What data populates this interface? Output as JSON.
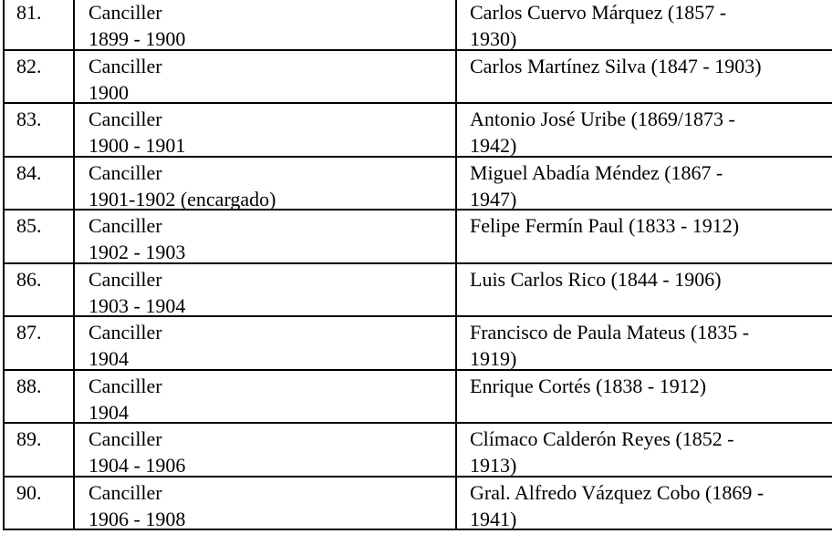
{
  "rows": [
    {
      "num": "81.",
      "title": "Canciller",
      "period": "1899 - 1900",
      "name1": "Carlos Cuervo Márquez (1857 -",
      "name2": "1930)"
    },
    {
      "num": "82.",
      "title": "Canciller",
      "period": "1900",
      "name1": "Carlos Martínez Silva (1847 - 1903)",
      "name2": ""
    },
    {
      "num": "83.",
      "title": "Canciller",
      "period": "1900 - 1901",
      "name1": "Antonio José Uribe (1869/1873 -",
      "name2": "1942)"
    },
    {
      "num": "84.",
      "title": "Canciller",
      "period": "1901-1902 (encargado)",
      "name1": "Miguel Abadía Méndez (1867 -",
      "name2": "1947)"
    },
    {
      "num": "85.",
      "title": "Canciller",
      "period": "1902 - 1903",
      "name1": "Felipe Fermín Paul (1833 - 1912)",
      "name2": ""
    },
    {
      "num": "86.",
      "title": "Canciller",
      "period": "1903 - 1904",
      "name1": "Luis Carlos Rico (1844 - 1906)",
      "name2": ""
    },
    {
      "num": "87.",
      "title": "Canciller",
      "period": "1904",
      "name1": "Francisco de Paula Mateus (1835 -",
      "name2": "1919)"
    },
    {
      "num": "88.",
      "title": "Canciller",
      "period": "1904",
      "name1": "Enrique Cortés (1838 - 1912)",
      "name2": ""
    },
    {
      "num": "89.",
      "title": "Canciller",
      "period": "1904 - 1906",
      "name1": "Clímaco Calderón Reyes (1852 -",
      "name2": "1913)"
    },
    {
      "num": "90.",
      "title": "Canciller",
      "period": "1906 - 1908",
      "name1": "Gral. Alfredo Vázquez Cobo (1869 -",
      "name2": "1941)"
    }
  ]
}
